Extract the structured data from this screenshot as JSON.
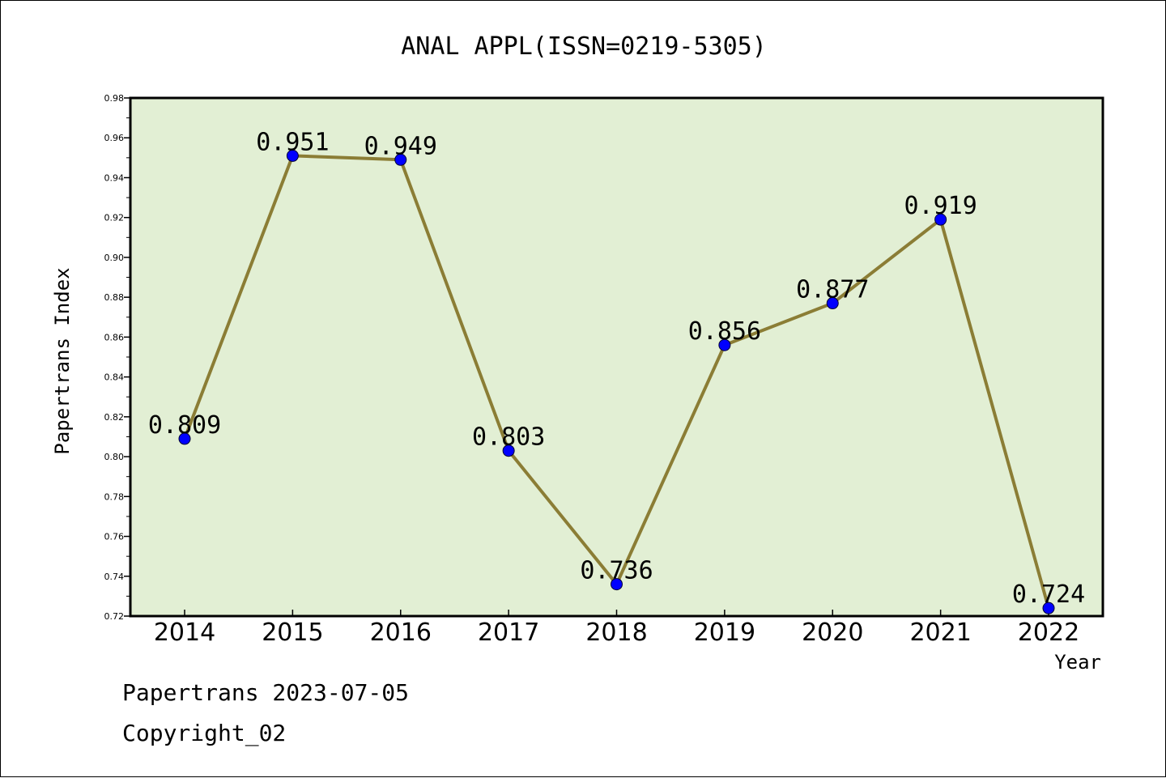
{
  "chart_data": {
    "type": "line",
    "title": "ANAL APPL(ISSN=0219-5305)",
    "xlabel": "Year",
    "ylabel": "Papertrans Index",
    "categories": [
      "2014",
      "2015",
      "2016",
      "2017",
      "2018",
      "2019",
      "2020",
      "2021",
      "2022"
    ],
    "series": [
      {
        "values": [
          0.809,
          0.951,
          0.949,
          0.803,
          0.736,
          0.856,
          0.877,
          0.919,
          0.724
        ],
        "labels": [
          "0.809",
          "0.951",
          "0.949",
          "0.803",
          "0.736",
          "0.856",
          "0.877",
          "0.919",
          "0.724"
        ],
        "line_color": "#8b7d35",
        "marker_color": "#0000ff"
      }
    ],
    "ylim": [
      0.72,
      0.98
    ],
    "yticks": [
      "0.72",
      "0.74",
      "0.76",
      "0.78",
      "0.80",
      "0.82",
      "0.84",
      "0.86",
      "0.88",
      "0.90",
      "0.92",
      "0.94",
      "0.96",
      "0.98"
    ],
    "grid": false,
    "plot_background": "#e2efd4"
  },
  "footer": {
    "line1": "Papertrans 2023-07-05",
    "line2": "Copyright_02"
  }
}
